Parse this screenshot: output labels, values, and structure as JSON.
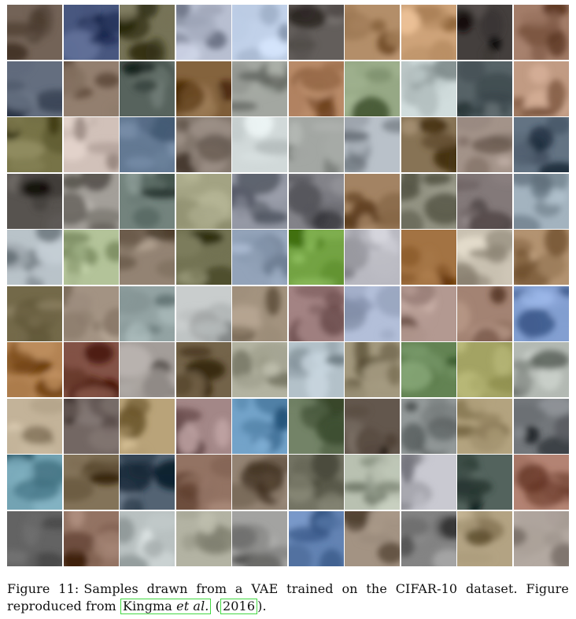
{
  "figure": {
    "rows": 10,
    "cols": 10,
    "samples_description_colors": [
      [
        "#5a4a3e",
        "#2f3e66",
        "#5d5a3e",
        "#9fa6b8",
        "#a8b8d0",
        "#4a4542",
        "#9a7550",
        "#b58a60",
        "#2b2624",
        "#8a6450"
      ],
      [
        "#4b5566",
        "#7a6656",
        "#3e4a44",
        "#6b4a24",
        "#8a8e88",
        "#a07250",
        "#7d8f6c",
        "#b8c4c4",
        "#3e4a4e",
        "#a8826a"
      ],
      [
        "#5e5a2e",
        "#b8a8a0",
        "#4a607a",
        "#6a5e54",
        "#b8c0c0",
        "#8a8e8a",
        "#a0a8b0",
        "#6e5a3c",
        "#8a7a70",
        "#4a5a6a"
      ],
      [
        "#3e3a36",
        "#8a8680",
        "#5a6a64",
        "#8a8a6a",
        "#7a7e8a",
        "#6a6a70",
        "#8a6a4a",
        "#7a7a6a",
        "#6a6060",
        "#8a9aa6"
      ],
      [
        "#a0aab0",
        "#9aaa80",
        "#7a6a5a",
        "#5a5a3a",
        "#7a8aa0",
        "#5a8a2a",
        "#a0a0a8",
        "#8a5a2a",
        "#b0a898",
        "#9a7a58"
      ],
      [
        "#5a5030",
        "#8a7a6a",
        "#7a8a8a",
        "#b0b4b4",
        "#8a7a66",
        "#8a6a6a",
        "#9aa6c0",
        "#9a8078",
        "#8a6a5a",
        "#6a86b8"
      ],
      [
        "#9a6a3a",
        "#6a3a2e",
        "#8a8480",
        "#5a4a30",
        "#9a9a88",
        "#9aa8b0",
        "#8a8066",
        "#4a6a3a",
        "#8a8a4a",
        "#9aa09a"
      ],
      [
        "#aa9a80",
        "#5a4e4a",
        "#a08a60",
        "#8a6e6e",
        "#5a8ab0",
        "#5a6a4e",
        "#4a3e34",
        "#7a8080",
        "#9a8a66",
        "#5a5e62"
      ],
      [
        "#5a8a9a",
        "#6a5a40",
        "#3a4a5a",
        "#7a5a4a",
        "#7a6a5a",
        "#5a5a4a",
        "#a0a898",
        "#b0b0b8",
        "#3a4a44",
        "#9a6a5a"
      ],
      [
        "#4a4a4a",
        "#7a5a4a",
        "#a0a8a8",
        "#9a9a8a",
        "#8a8a88",
        "#4a6a9a",
        "#8a7a6a",
        "#6a6a6a",
        "#9a8a6a",
        "#9a9088"
      ]
    ]
  },
  "caption": {
    "label": "Figure 11:",
    "text_before": "Samples drawn from a VAE trained on the CIFAR-10 dataset. Figure reproduced from ",
    "cite_author": "Kingma",
    "cite_etal": "et al.",
    "cite_year_open": "(",
    "cite_year": "2016",
    "cite_year_close": ").",
    "link_color": "#43d843"
  }
}
